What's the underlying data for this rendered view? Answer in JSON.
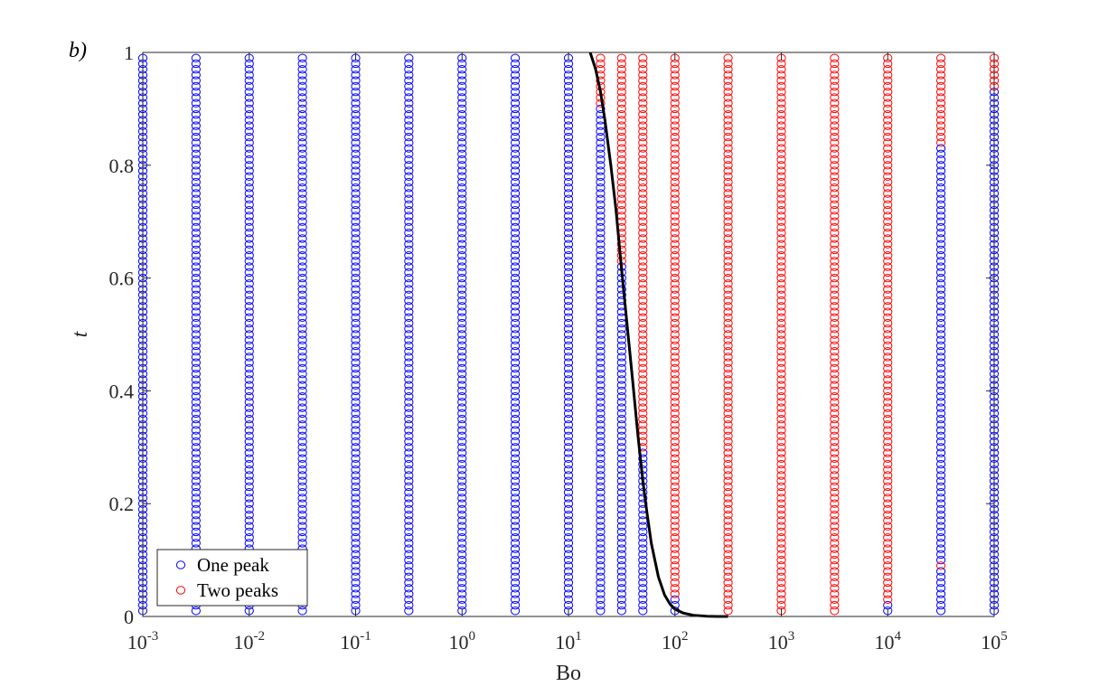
{
  "chart_data": {
    "type": "scatter",
    "panel_label": "b)",
    "xlabel": "Bo",
    "ylabel": "t",
    "xscale": "log",
    "xlim": [
      0.001,
      100000
    ],
    "ylim": [
      0,
      1
    ],
    "x_ticks": [
      {
        "base": "10",
        "exp": "-3",
        "value": 0.001
      },
      {
        "base": "10",
        "exp": "-2",
        "value": 0.01
      },
      {
        "base": "10",
        "exp": "-1",
        "value": 0.1
      },
      {
        "base": "10",
        "exp": "0",
        "value": 1
      },
      {
        "base": "10",
        "exp": "1",
        "value": 10
      },
      {
        "base": "10",
        "exp": "2",
        "value": 100
      },
      {
        "base": "10",
        "exp": "3",
        "value": 1000
      },
      {
        "base": "10",
        "exp": "4",
        "value": 10000
      },
      {
        "base": "10",
        "exp": "5",
        "value": 100000
      }
    ],
    "y_ticks": [
      {
        "label": "0",
        "value": 0
      },
      {
        "label": "0.2",
        "value": 0.2
      },
      {
        "label": "0.4",
        "value": 0.4
      },
      {
        "label": "0.6",
        "value": 0.6
      },
      {
        "label": "0.8",
        "value": 0.8
      },
      {
        "label": "1",
        "value": 1
      }
    ],
    "t_samples": {
      "start": 0.01,
      "end": 0.99,
      "step": 0.01
    },
    "series": [
      {
        "name": "One peak",
        "color": "#0000ff",
        "marker": "open-circle"
      },
      {
        "name": "Two peaks",
        "color": "#ff0000",
        "marker": "open-circle"
      }
    ],
    "columns": [
      {
        "bo": 0.001,
        "one_peak": [
          [
            0.01,
            0.99
          ]
        ],
        "two_peaks": []
      },
      {
        "bo": 0.00316,
        "one_peak": [
          [
            0.01,
            0.99
          ]
        ],
        "two_peaks": []
      },
      {
        "bo": 0.01,
        "one_peak": [
          [
            0.01,
            0.99
          ]
        ],
        "two_peaks": []
      },
      {
        "bo": 0.0316,
        "one_peak": [
          [
            0.01,
            0.99
          ]
        ],
        "two_peaks": []
      },
      {
        "bo": 0.1,
        "one_peak": [
          [
            0.01,
            0.99
          ]
        ],
        "two_peaks": []
      },
      {
        "bo": 0.316,
        "one_peak": [
          [
            0.01,
            0.99
          ]
        ],
        "two_peaks": []
      },
      {
        "bo": 1,
        "one_peak": [
          [
            0.01,
            0.99
          ]
        ],
        "two_peaks": []
      },
      {
        "bo": 3.16,
        "one_peak": [
          [
            0.01,
            0.99
          ]
        ],
        "two_peaks": []
      },
      {
        "bo": 10,
        "one_peak": [
          [
            0.01,
            0.99
          ]
        ],
        "two_peaks": []
      },
      {
        "bo": 20,
        "one_peak": [
          [
            0.01,
            0.9
          ]
        ],
        "two_peaks": [
          [
            0.91,
            0.99
          ]
        ]
      },
      {
        "bo": 31.6,
        "one_peak": [
          [
            0.01,
            0.62
          ]
        ],
        "two_peaks": [
          [
            0.63,
            0.99
          ]
        ]
      },
      {
        "bo": 50,
        "one_peak": [
          [
            0.01,
            0.29
          ]
        ],
        "two_peaks": [
          [
            0.3,
            0.99
          ]
        ]
      },
      {
        "bo": 100,
        "one_peak": [
          [
            0.01,
            0.03
          ]
        ],
        "two_peaks": [
          [
            0.04,
            0.99
          ]
        ]
      },
      {
        "bo": 316,
        "one_peak": [],
        "two_peaks": [
          [
            0.01,
            0.99
          ]
        ]
      },
      {
        "bo": 1000,
        "one_peak": [],
        "two_peaks": [
          [
            0.01,
            0.99
          ]
        ]
      },
      {
        "bo": 3160,
        "one_peak": [],
        "two_peaks": [
          [
            0.01,
            0.99
          ]
        ]
      },
      {
        "bo": 10000,
        "one_peak": [
          [
            0.01,
            0.02
          ]
        ],
        "two_peaks": [
          [
            0.03,
            0.99
          ]
        ]
      },
      {
        "bo": 31600,
        "one_peak": [
          [
            0.01,
            0.08
          ],
          [
            0.1,
            0.83
          ]
        ],
        "two_peaks": [
          [
            0.09,
            0.09
          ],
          [
            0.84,
            0.99
          ]
        ]
      },
      {
        "bo": 100000,
        "one_peak": [
          [
            0.01,
            0.93
          ]
        ],
        "two_peaks": [
          [
            0.94,
            0.99
          ]
        ]
      }
    ],
    "boundary_curve": {
      "color": "#000000",
      "x": [
        16,
        18,
        20,
        22,
        25,
        28,
        31,
        35,
        40,
        45,
        50,
        55,
        60,
        70,
        80,
        90,
        100,
        120,
        150,
        200,
        250,
        316
      ],
      "y": [
        1.0,
        0.97,
        0.93,
        0.88,
        0.8,
        0.72,
        0.63,
        0.53,
        0.42,
        0.32,
        0.24,
        0.18,
        0.13,
        0.07,
        0.038,
        0.022,
        0.013,
        0.006,
        0.002,
        0.0005,
        0.0001,
        0.0
      ]
    },
    "legend": {
      "position": "bottom-left"
    }
  }
}
